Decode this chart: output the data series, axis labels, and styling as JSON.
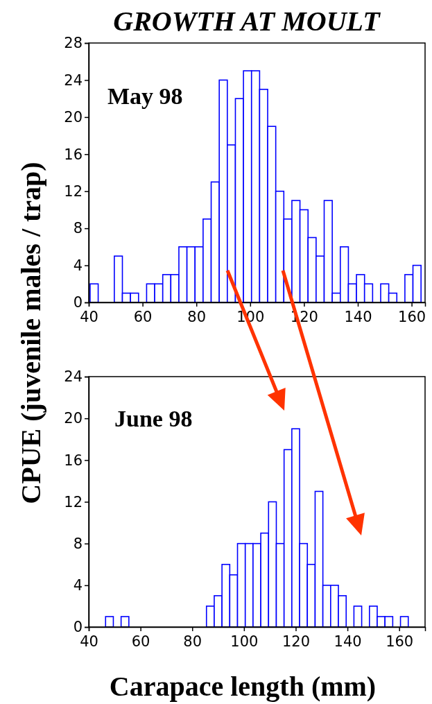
{
  "chart_data": [
    {
      "type": "histogram",
      "title": "GROWTH AT MOULT",
      "ylabel": "CPUE (juvenile males / trap)",
      "annotations": [
        "May 98"
      ],
      "color": "#0000ff",
      "xlim": [
        40,
        165
      ],
      "xticks": [
        40,
        60,
        80,
        100,
        120,
        140,
        160
      ],
      "ylim": [
        0,
        28
      ],
      "yticks": [
        0,
        4,
        8,
        12,
        16,
        20,
        24,
        28
      ],
      "bins": [
        40.5,
        43.5,
        46.5,
        49.5,
        52.5,
        55.5,
        58.5,
        61.5,
        64.5,
        67.5,
        70.5,
        73.5,
        76.5,
        79.5,
        82.5,
        85.5,
        88.5,
        91.5,
        94.5,
        97.5,
        100.5,
        103.5,
        106.5,
        109.5,
        112.5,
        115.5,
        118.5,
        121.5,
        124.5,
        127.5,
        130.5,
        133.5,
        136.5,
        139.5,
        142.5,
        145.5,
        148.5,
        151.5,
        154.5,
        157.5,
        160.5,
        163.5
      ],
      "values": [
        2,
        0,
        0,
        5,
        1,
        1,
        0,
        2,
        2,
        3,
        3,
        6,
        6,
        6,
        9,
        13,
        24,
        17,
        22,
        25,
        25,
        23,
        19,
        12,
        9,
        11,
        10,
        7,
        5,
        11,
        1,
        6,
        2,
        3,
        2,
        0,
        2,
        1,
        0,
        3,
        4
      ]
    },
    {
      "type": "histogram",
      "xlabel": "Carapace length (mm)",
      "annotations": [
        "June 98"
      ],
      "color": "#0000ff",
      "xlim": [
        40,
        170
      ],
      "xticks": [
        40,
        60,
        80,
        100,
        120,
        140,
        160
      ],
      "ylim": [
        0,
        24
      ],
      "yticks": [
        0,
        4,
        8,
        12,
        16,
        20,
        24
      ],
      "bins": [
        40.5,
        43.5,
        46.5,
        49.5,
        52.5,
        55.5,
        58.5,
        61.5,
        64.5,
        67.5,
        70.5,
        73.5,
        76.5,
        79.5,
        82.5,
        85.5,
        88.5,
        91.5,
        94.5,
        97.5,
        100.5,
        103.5,
        106.5,
        109.5,
        112.5,
        115.5,
        118.5,
        121.5,
        124.5,
        127.5,
        130.5,
        133.5,
        136.5,
        139.5,
        142.5,
        145.5,
        148.5,
        151.5,
        154.5,
        157.5,
        160.5,
        163.5
      ],
      "values": [
        0,
        0,
        1,
        0,
        1,
        0,
        0,
        0,
        0,
        0,
        0,
        0,
        0,
        0,
        0,
        2,
        3,
        6,
        5,
        8,
        8,
        8,
        9,
        12,
        8,
        17,
        19,
        8,
        6,
        13,
        4,
        4,
        3,
        0,
        2,
        0,
        2,
        1,
        1,
        0,
        1
      ]
    }
  ]
}
